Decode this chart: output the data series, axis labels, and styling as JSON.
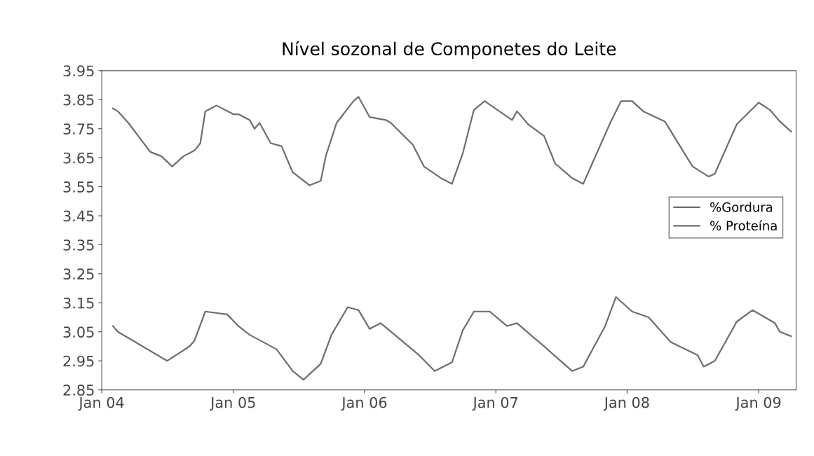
{
  "chart_data": {
    "type": "line",
    "title": "Nível sozonal de Componetes do Leite",
    "xlim": [
      "2004-01-01",
      "2009-04-15"
    ],
    "ylim": [
      2.85,
      3.95
    ],
    "xticks": [
      {
        "value": "2004-01-01",
        "label": "Jan 04"
      },
      {
        "value": "2005-01-01",
        "label": "Jan 05"
      },
      {
        "value": "2006-01-01",
        "label": "Jan 06"
      },
      {
        "value": "2007-01-01",
        "label": "Jan 07"
      },
      {
        "value": "2008-01-01",
        "label": "Jan 08"
      },
      {
        "value": "2009-01-01",
        "label": "Jan 09"
      }
    ],
    "yticks": [
      2.85,
      2.95,
      3.05,
      3.15,
      3.25,
      3.35,
      3.45,
      3.55,
      3.65,
      3.75,
      3.85,
      3.95
    ],
    "grid": false,
    "legend": "right",
    "marker": "none",
    "line_style": "solid",
    "series": [
      {
        "name": "%Gordura",
        "color": "#6e6e6e",
        "x": [
          "2004-02-01",
          "2004-02-15",
          "2004-03-15",
          "2004-05-15",
          "2004-06-15",
          "2004-07-15",
          "2004-08-15",
          "2004-09-15",
          "2004-10-01",
          "2004-10-15",
          "2004-11-15",
          "2005-01-01",
          "2005-01-15",
          "2005-02-15",
          "2005-03-01",
          "2005-03-15",
          "2005-04-15",
          "2005-05-15",
          "2005-06-15",
          "2005-08-01",
          "2005-09-01",
          "2005-09-15",
          "2005-10-15",
          "2005-12-01",
          "2005-12-15",
          "2006-01-15",
          "2006-03-01",
          "2006-03-15",
          "2006-05-15",
          "2006-06-15",
          "2006-08-01",
          "2006-09-01",
          "2006-10-01",
          "2006-11-01",
          "2006-12-01",
          "2007-02-15",
          "2007-03-01",
          "2007-04-01",
          "2007-05-15",
          "2007-06-15",
          "2007-08-01",
          "2007-09-01",
          "2007-11-15",
          "2007-12-15",
          "2008-01-15",
          "2008-02-15",
          "2008-04-15",
          "2008-07-01",
          "2008-08-15",
          "2008-09-01",
          "2008-11-01",
          "2009-01-01",
          "2009-02-01",
          "2009-03-01",
          "2009-04-01"
        ],
        "values": [
          3.82,
          3.81,
          3.77,
          3.67,
          3.655,
          3.62,
          3.655,
          3.675,
          3.7,
          3.81,
          3.83,
          3.8,
          3.8,
          3.78,
          3.75,
          3.77,
          3.7,
          3.69,
          3.6,
          3.555,
          3.57,
          3.655,
          3.77,
          3.845,
          3.86,
          3.79,
          3.78,
          3.77,
          3.695,
          3.62,
          3.58,
          3.56,
          3.665,
          3.815,
          3.845,
          3.78,
          3.81,
          3.765,
          3.725,
          3.63,
          3.58,
          3.56,
          3.77,
          3.845,
          3.845,
          3.81,
          3.775,
          3.62,
          3.585,
          3.595,
          3.765,
          3.84,
          3.815,
          3.775,
          3.74
        ]
      },
      {
        "name": "% Proteína",
        "color": "#6e6e6e",
        "x": [
          "2004-02-01",
          "2004-02-15",
          "2004-07-01",
          "2004-09-01",
          "2004-09-15",
          "2004-10-15",
          "2004-12-15",
          "2005-01-15",
          "2005-02-15",
          "2005-05-01",
          "2005-06-15",
          "2005-07-15",
          "2005-09-01",
          "2005-10-01",
          "2005-11-15",
          "2005-12-15",
          "2006-01-15",
          "2006-02-15",
          "2006-06-01",
          "2006-07-15",
          "2006-09-01",
          "2006-10-01",
          "2006-11-01",
          "2006-12-15",
          "2007-02-01",
          "2007-03-01",
          "2007-05-15",
          "2007-08-01",
          "2007-09-01",
          "2007-11-01",
          "2007-12-01",
          "2008-01-15",
          "2008-03-01",
          "2008-05-01",
          "2008-07-15",
          "2008-08-01",
          "2008-09-01",
          "2008-11-01",
          "2008-12-15",
          "2009-02-15",
          "2009-03-01",
          "2009-04-01"
        ],
        "values": [
          3.07,
          3.05,
          2.95,
          3.0,
          3.02,
          3.12,
          3.11,
          3.07,
          3.04,
          2.99,
          2.915,
          2.885,
          2.94,
          3.04,
          3.135,
          3.125,
          3.06,
          3.08,
          2.97,
          2.915,
          2.945,
          3.055,
          3.12,
          3.12,
          3.07,
          3.08,
          3.0,
          2.915,
          2.93,
          3.07,
          3.17,
          3.12,
          3.1,
          3.015,
          2.97,
          2.93,
          2.95,
          3.085,
          3.125,
          3.08,
          3.05,
          3.035
        ]
      }
    ]
  }
}
